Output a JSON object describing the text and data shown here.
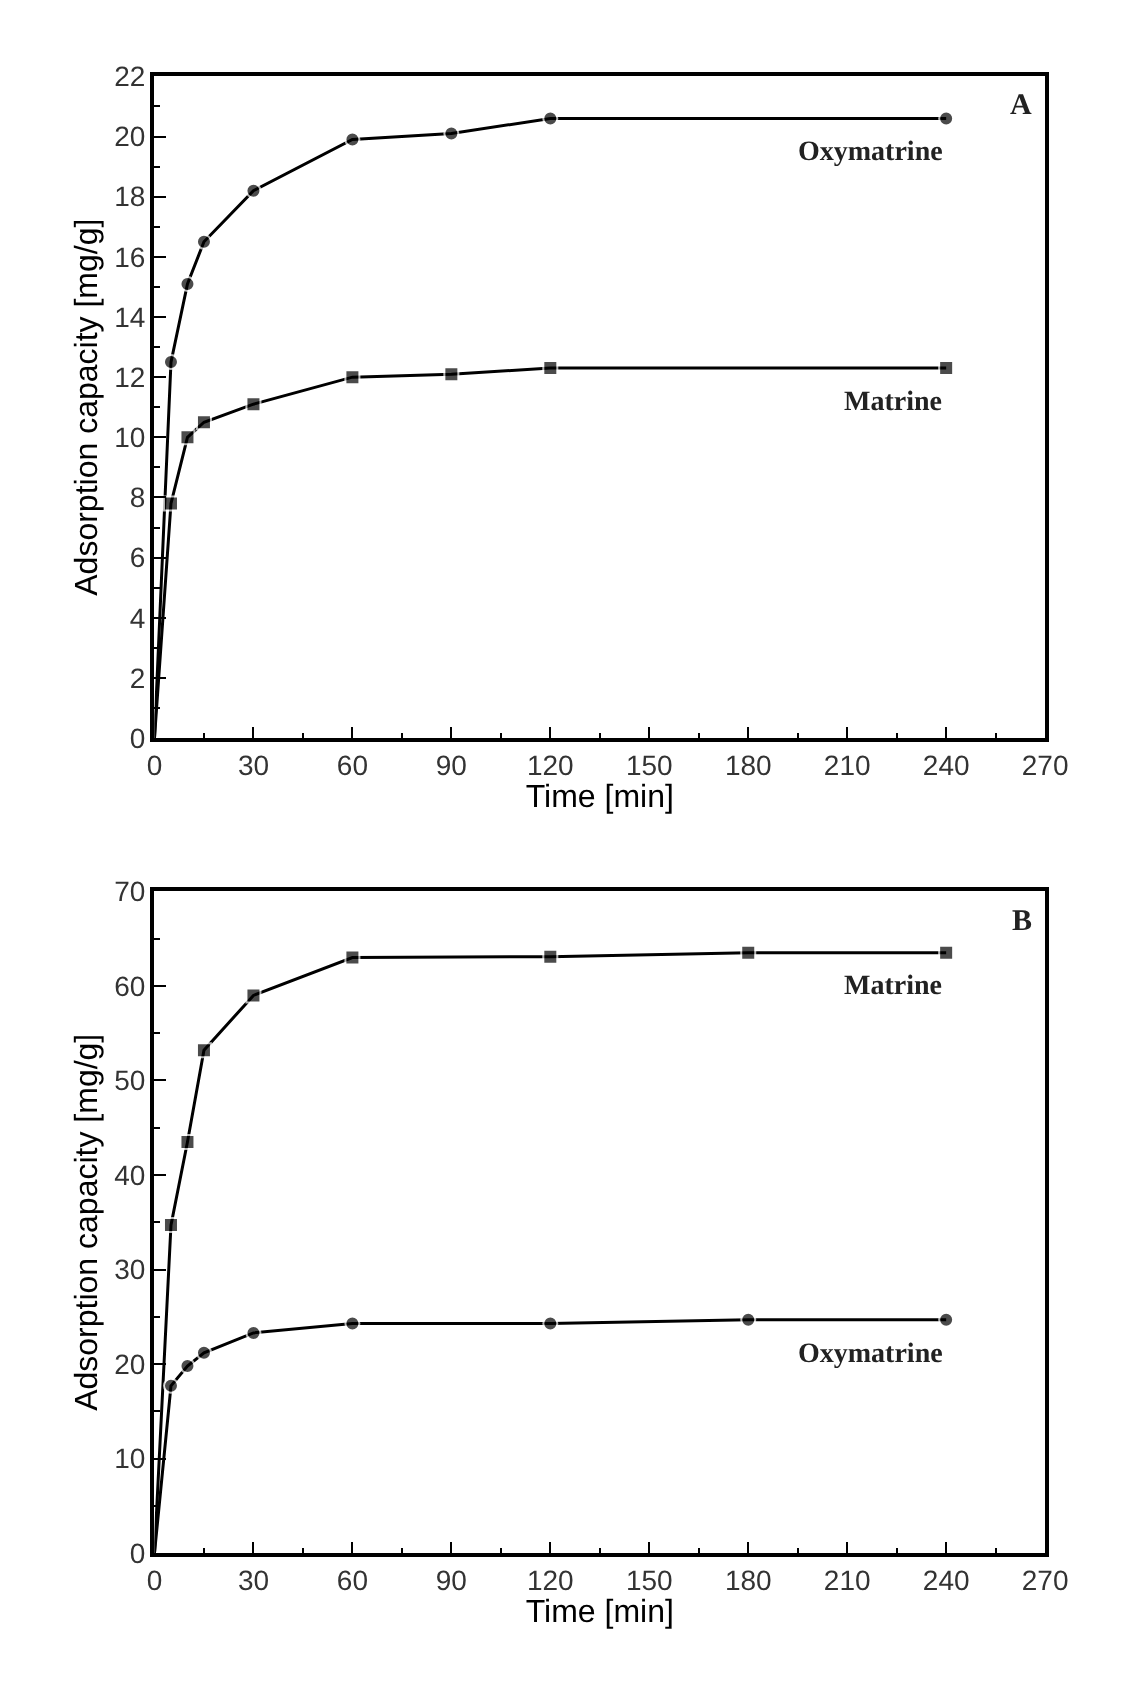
{
  "chart_data": [
    {
      "type": "line",
      "title": "A",
      "xlabel": "Time [min]",
      "ylabel": "Adsorption capacity [mg/g]",
      "x": [
        0,
        5,
        10,
        15,
        30,
        60,
        90,
        120,
        240
      ],
      "series": [
        {
          "name": "Oxymatrine",
          "color": "#000000",
          "marker": "circle",
          "values": [
            0,
            12.5,
            15.1,
            16.5,
            18.2,
            19.9,
            20.1,
            20.6,
            20.6
          ]
        },
        {
          "name": "Matrine",
          "color": "#000000",
          "marker": "square",
          "values": [
            0,
            7.8,
            10.0,
            10.5,
            11.1,
            12.0,
            12.1,
            12.3,
            12.3
          ]
        }
      ],
      "xlim": [
        0,
        270
      ],
      "xticks": [
        0,
        30,
        60,
        90,
        120,
        150,
        180,
        210,
        240,
        270
      ],
      "ylim": [
        0,
        22
      ],
      "yticks": [
        0,
        2,
        4,
        6,
        8,
        10,
        12,
        14,
        16,
        18,
        20,
        22
      ],
      "legend": false,
      "line_style": "solid"
    },
    {
      "type": "line",
      "title": "B",
      "xlabel": "Time [min]",
      "ylabel": "Adsorption capacity [mg/g]",
      "x": [
        0,
        5,
        10,
        15,
        30,
        60,
        120,
        180,
        240
      ],
      "series": [
        {
          "name": "Matrine",
          "color": "#000000",
          "marker": "square",
          "values": [
            0,
            34.7,
            43.5,
            53.2,
            59.0,
            63.0,
            63.1,
            63.5,
            63.5
          ]
        },
        {
          "name": "Oxymatrine",
          "color": "#000000",
          "marker": "circle",
          "values": [
            0,
            17.7,
            19.8,
            21.2,
            23.3,
            24.3,
            24.3,
            24.7,
            24.7
          ]
        }
      ],
      "xlim": [
        0,
        270
      ],
      "xticks": [
        0,
        30,
        60,
        90,
        120,
        150,
        180,
        210,
        240,
        270
      ],
      "ylim": [
        0,
        70
      ],
      "yticks": [
        0,
        10,
        20,
        30,
        40,
        50,
        60,
        70
      ],
      "legend": false,
      "line_style": "solid"
    }
  ]
}
